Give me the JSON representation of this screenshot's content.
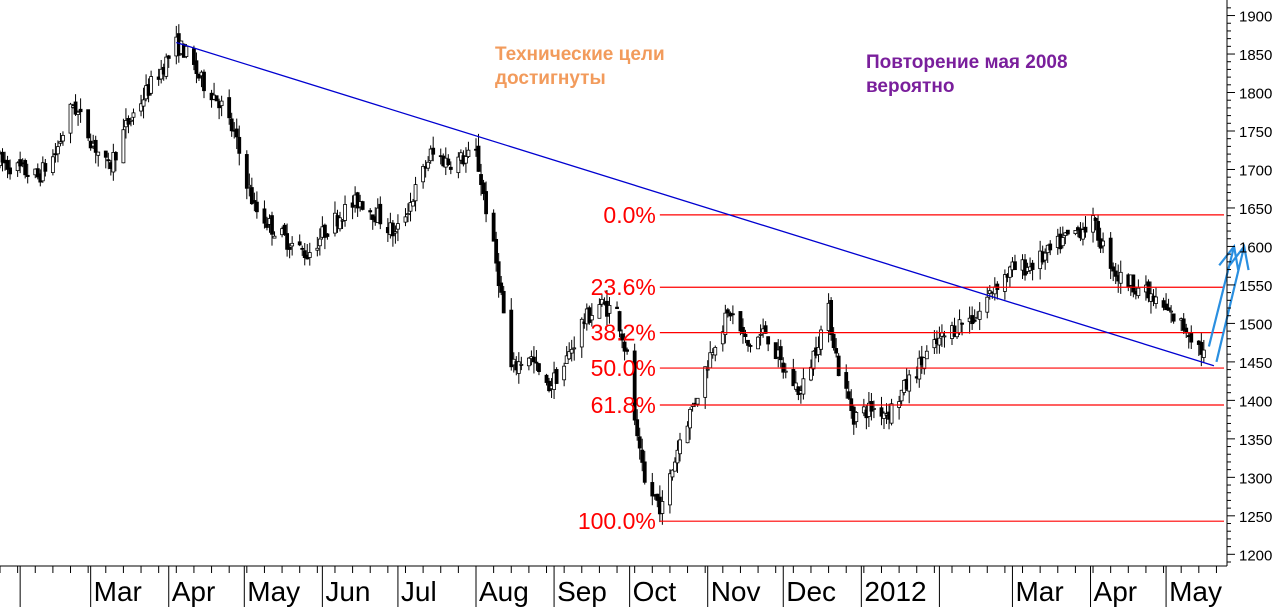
{
  "chart_data": {
    "type": "candlestick",
    "title": "",
    "xlabel": "",
    "ylabel": "",
    "ylim": [
      1190,
      1915
    ],
    "y_ticks": [
      1200,
      1250,
      1300,
      1350,
      1400,
      1450,
      1500,
      1550,
      1600,
      1650,
      1700,
      1750,
      1800,
      1850,
      1900
    ],
    "x_ticks": [
      {
        "label": "",
        "date": "2011-02-01"
      },
      {
        "label": "Mar",
        "date": "2011-03-01"
      },
      {
        "label": "Apr",
        "date": "2011-04-01"
      },
      {
        "label": "May",
        "date": "2011-05-01"
      },
      {
        "label": "Jun",
        "date": "2011-06-01"
      },
      {
        "label": "Jul",
        "date": "2011-07-01"
      },
      {
        "label": "Aug",
        "date": "2011-08-01"
      },
      {
        "label": "Sep",
        "date": "2011-09-01"
      },
      {
        "label": "Oct",
        "date": "2011-10-01"
      },
      {
        "label": "Nov",
        "date": "2011-11-01"
      },
      {
        "label": "Dec",
        "date": "2011-12-01"
      },
      {
        "label": "2012",
        "date": "2012-01-01"
      },
      {
        "label": "",
        "date": "2012-02-01"
      },
      {
        "label": "Mar",
        "date": "2012-03-01"
      },
      {
        "label": "Apr",
        "date": "2012-04-01"
      },
      {
        "label": "May",
        "date": "2012-05-01"
      }
    ],
    "x_range": [
      "2011-01-24",
      "2012-05-24"
    ],
    "grid": false,
    "price_path": [
      [
        "2011-01-24",
        1710
      ],
      [
        "2011-02-01",
        1700
      ],
      [
        "2011-02-08",
        1690
      ],
      [
        "2011-02-15",
        1720
      ],
      [
        "2011-02-22",
        1785
      ],
      [
        "2011-03-01",
        1740
      ],
      [
        "2011-03-08",
        1700
      ],
      [
        "2011-03-15",
        1755
      ],
      [
        "2011-03-22",
        1795
      ],
      [
        "2011-03-29",
        1830
      ],
      [
        "2011-04-04",
        1862
      ],
      [
        "2011-04-07",
        1855
      ],
      [
        "2011-04-14",
        1815
      ],
      [
        "2011-04-21",
        1790
      ],
      [
        "2011-04-27",
        1745
      ],
      [
        "2011-05-05",
        1650
      ],
      [
        "2011-05-12",
        1625
      ],
      [
        "2011-05-19",
        1605
      ],
      [
        "2011-05-26",
        1590
      ],
      [
        "2011-06-02",
        1620
      ],
      [
        "2011-06-09",
        1645
      ],
      [
        "2011-06-16",
        1660
      ],
      [
        "2011-06-23",
        1640
      ],
      [
        "2011-06-30",
        1615
      ],
      [
        "2011-07-07",
        1665
      ],
      [
        "2011-07-14",
        1720
      ],
      [
        "2011-07-21",
        1710
      ],
      [
        "2011-07-28",
        1715
      ],
      [
        "2011-08-01",
        1720
      ],
      [
        "2011-08-05",
        1650
      ],
      [
        "2011-08-10",
        1560
      ],
      [
        "2011-08-15",
        1440
      ],
      [
        "2011-08-22",
        1460
      ],
      [
        "2011-08-29",
        1415
      ],
      [
        "2011-09-05",
        1445
      ],
      [
        "2011-09-12",
        1500
      ],
      [
        "2011-09-19",
        1525
      ],
      [
        "2011-09-26",
        1515
      ],
      [
        "2011-10-01",
        1440
      ],
      [
        "2011-10-04",
        1345
      ],
      [
        "2011-10-07",
        1290
      ],
      [
        "2011-10-14",
        1260
      ],
      [
        "2011-10-21",
        1350
      ],
      [
        "2011-10-28",
        1410
      ],
      [
        "2011-11-04",
        1480
      ],
      [
        "2011-11-10",
        1515
      ],
      [
        "2011-11-17",
        1470
      ],
      [
        "2011-11-24",
        1490
      ],
      [
        "2011-12-01",
        1440
      ],
      [
        "2011-12-08",
        1410
      ],
      [
        "2011-12-15",
        1480
      ],
      [
        "2011-12-19",
        1515
      ],
      [
        "2011-12-23",
        1440
      ],
      [
        "2011-12-29",
        1380
      ],
      [
        "2012-01-05",
        1390
      ],
      [
        "2012-01-12",
        1385
      ],
      [
        "2012-01-19",
        1420
      ],
      [
        "2012-01-26",
        1455
      ],
      [
        "2012-02-02",
        1480
      ],
      [
        "2012-02-09",
        1500
      ],
      [
        "2012-02-16",
        1510
      ],
      [
        "2012-02-23",
        1550
      ],
      [
        "2012-03-01",
        1570
      ],
      [
        "2012-03-08",
        1575
      ],
      [
        "2012-03-15",
        1590
      ],
      [
        "2012-03-22",
        1610
      ],
      [
        "2012-03-29",
        1625
      ],
      [
        "2012-04-02",
        1630
      ],
      [
        "2012-04-06",
        1600
      ],
      [
        "2012-04-12",
        1560
      ],
      [
        "2012-04-19",
        1550
      ],
      [
        "2012-04-26",
        1530
      ],
      [
        "2012-05-03",
        1510
      ],
      [
        "2012-05-10",
        1490
      ],
      [
        "2012-05-14",
        1470
      ],
      [
        "2012-05-16",
        1460
      ]
    ],
    "trendline": {
      "from": [
        "2011-04-04",
        1865
      ],
      "to": [
        "2012-05-20",
        1445
      ],
      "color": "#0000d0"
    },
    "fib_levels": [
      {
        "label": "0.0%",
        "value": 1641
      },
      {
        "label": "23.6%",
        "value": 1547
      },
      {
        "label": "38.2%",
        "value": 1488
      },
      {
        "label": "50.0%",
        "value": 1442
      },
      {
        "label": "61.8%",
        "value": 1394
      },
      {
        "label": "100.0%",
        "value": 1243
      }
    ],
    "fib_start_date": "2011-10-13",
    "fib_color": "#ff0000",
    "arrows": [
      {
        "from": [
          "2012-05-18",
          1470
        ],
        "to": [
          "2012-05-28",
          1600
        ]
      },
      {
        "from": [
          "2012-05-21",
          1450
        ],
        "to": [
          "2012-06-01",
          1600
        ]
      }
    ],
    "arrow_color": "#2a8fe0"
  },
  "annotations": {
    "left": "Технические цели\nдостигнуты",
    "right": "Повторение мая 2008\nвероятно"
  },
  "colors": {
    "candles": "#000000",
    "axis": "#000000",
    "left_annotation": "#f29b5c",
    "right_annotation": "#7a1f9c"
  }
}
